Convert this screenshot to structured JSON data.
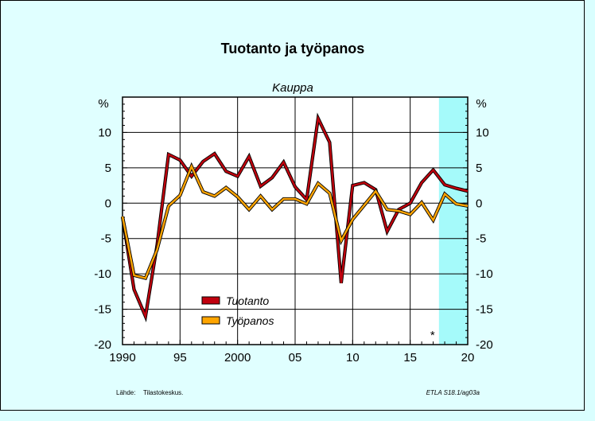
{
  "chart_data": {
    "type": "line",
    "title": "Tuotanto ja työpanos",
    "subtitle": "Kauppa",
    "ylabel_left": "%",
    "ylabel_right": "%",
    "xlim": [
      1990,
      2020
    ],
    "ylim": [
      -20,
      15
    ],
    "x_ticks": [
      1990,
      1995,
      2000,
      2005,
      2010,
      2015,
      2020
    ],
    "x_tick_labels": [
      "1990",
      "95",
      "2000",
      "05",
      "10",
      "15",
      "20"
    ],
    "y_ticks": [
      -20,
      -15,
      -10,
      -5,
      0,
      5,
      10
    ],
    "y_tick_labels": [
      "-20",
      "-15",
      "-10",
      "-5",
      "0",
      "5",
      "10"
    ],
    "grid": true,
    "forecast_from": 2017.5,
    "forecast_marker": "*",
    "forecast_color": "#a5fafa",
    "legend_position": "lower-left",
    "x": [
      1990,
      1991,
      1992,
      1993,
      1994,
      1995,
      1996,
      1997,
      1998,
      1999,
      2000,
      2001,
      2002,
      2003,
      2004,
      2005,
      2006,
      2007,
      2008,
      2009,
      2010,
      2011,
      2012,
      2013,
      2014,
      2015,
      2016,
      2017,
      2018,
      2019,
      2020
    ],
    "series": [
      {
        "name": "Tuotanto",
        "color": "#c0000e",
        "values": [
          -1.9,
          -12.2,
          -16.0,
          -6.0,
          6.9,
          6.1,
          3.8,
          5.9,
          7.0,
          4.5,
          3.8,
          6.6,
          2.4,
          3.6,
          5.8,
          2.3,
          0.5,
          12.0,
          8.6,
          -11.3,
          2.5,
          2.9,
          1.9,
          -4.0,
          -0.9,
          0.0,
          2.9,
          4.7,
          2.6,
          2.1,
          1.7
        ]
      },
      {
        "name": "Työpanos",
        "color": "#ffa500",
        "values": [
          -1.9,
          -10.2,
          -10.6,
          -6.6,
          -0.4,
          1.1,
          5.2,
          1.6,
          1.0,
          2.2,
          0.9,
          -0.9,
          1.0,
          -0.9,
          0.6,
          0.6,
          -0.1,
          2.8,
          1.4,
          -5.3,
          -2.3,
          -0.3,
          1.7,
          -0.9,
          -1.1,
          -1.6,
          0.1,
          -2.4,
          1.3,
          -0.1,
          -0.4
        ]
      }
    ]
  },
  "footer": {
    "source_label": "Lähde:",
    "source_value": "Tilastokeskus.",
    "code": "ETLA S18.1/ag03a"
  }
}
